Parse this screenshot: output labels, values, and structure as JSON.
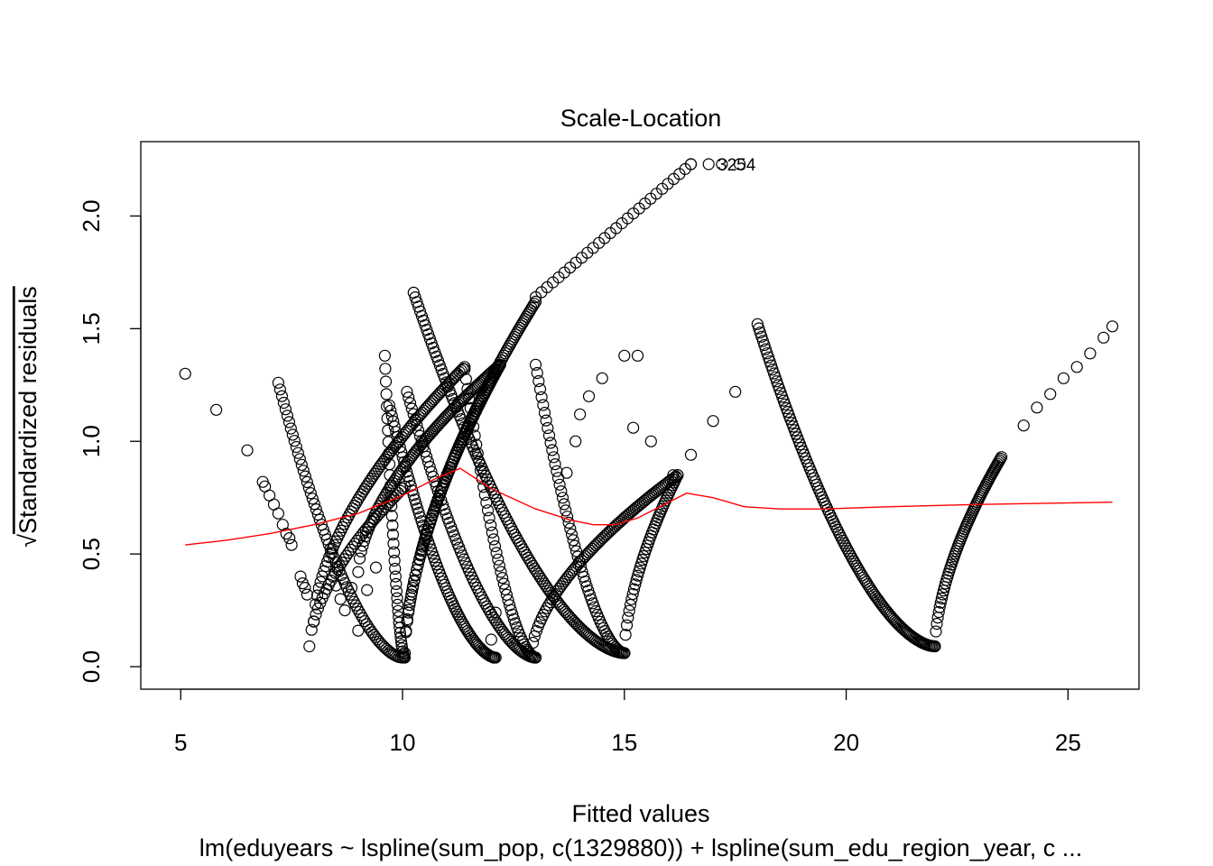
{
  "chart_data": {
    "type": "scatter",
    "title": "Scale-Location",
    "xlabel": "Fitted values",
    "ylabel": "Standardized residuals",
    "ylabel_prefix": "√",
    "subtitle": "lm(eduyears ~ lspline(sum_pop, c(1329880)) + lspline(sum_edu_region_year, c ...",
    "xlim": [
      4.1,
      26.6
    ],
    "ylim": [
      -0.1,
      2.33
    ],
    "xticks": [
      5,
      10,
      15,
      20,
      25
    ],
    "yticks": [
      0.0,
      0.5,
      1.0,
      1.5,
      2.0
    ],
    "grid": false,
    "colors": {
      "points": "#000000",
      "smooth": "#ff0000"
    },
    "point_labels": [
      {
        "text": "3254",
        "x": 17.1,
        "y": 2.23
      }
    ],
    "point_groups": [
      {
        "x": [
          5.1,
          5.8,
          6.5
        ],
        "y": [
          1.3,
          1.14,
          0.96
        ]
      },
      {
        "x": [
          6.85,
          6.9,
          7.0,
          7.1,
          7.2,
          7.3,
          7.38,
          7.45,
          7.5
        ],
        "y": [
          0.82,
          0.8,
          0.76,
          0.72,
          0.68,
          0.63,
          0.59,
          0.57,
          0.54
        ]
      },
      {
        "x": [
          7.7,
          7.75,
          7.8,
          7.85
        ],
        "y": [
          0.4,
          0.37,
          0.35,
          0.32
        ]
      },
      {
        "x": [
          8.5,
          8.6,
          8.7,
          8.85,
          9.0,
          9.2,
          9.4
        ],
        "y": [
          0.36,
          0.3,
          0.25,
          0.35,
          0.16,
          0.34,
          0.44
        ]
      },
      {
        "x": [
          12.05,
          12.0,
          12.1
        ],
        "y": [
          0.04,
          0.12,
          0.24
        ]
      },
      {
        "x": [
          14.0,
          14.2,
          14.5,
          15.0,
          15.3
        ],
        "y": [
          1.12,
          1.2,
          1.28,
          1.38,
          1.38
        ]
      },
      {
        "x": [
          15.2,
          15.6
        ],
        "y": [
          1.06,
          1.0
        ]
      },
      {
        "x": [
          13.7,
          13.9
        ],
        "y": [
          0.86,
          1.0
        ]
      },
      {
        "x": [
          16.1,
          16.5,
          17.0,
          17.5
        ],
        "y": [
          0.85,
          0.94,
          1.09,
          1.22
        ]
      },
      {
        "x": [
          16.5,
          16.9,
          17.2,
          17.6
        ],
        "y": [
          2.23,
          2.23,
          2.23,
          2.23
        ]
      },
      {
        "x": [
          24.0,
          24.3,
          24.6,
          24.9,
          25.2,
          25.5,
          25.8,
          26.0
        ],
        "y": [
          1.07,
          1.15,
          1.21,
          1.28,
          1.33,
          1.39,
          1.46,
          1.51
        ]
      }
    ],
    "point_curves": [
      {
        "x_from": 7.2,
        "x_to": 10.0,
        "y_from": 1.26,
        "y_to": 0.04,
        "n": 70,
        "shape": "down"
      },
      {
        "x_from": 7.9,
        "x_to": 10.05,
        "y_from": 0.09,
        "y_to": 0.8,
        "n": 45,
        "shape": "up"
      },
      {
        "x_from": 8.0,
        "x_to": 11.4,
        "y_from": 0.2,
        "y_to": 1.33,
        "n": 90,
        "shape": "up"
      },
      {
        "x_from": 9.6,
        "x_to": 10.05,
        "y_from": 1.38,
        "y_to": 0.04,
        "n": 40,
        "shape": "down"
      },
      {
        "x_from": 9.7,
        "x_to": 12.1,
        "y_from": 1.16,
        "y_to": 0.04,
        "n": 80,
        "shape": "down"
      },
      {
        "x_from": 9.0,
        "x_to": 12.2,
        "y_from": 0.42,
        "y_to": 1.34,
        "n": 95,
        "shape": "up"
      },
      {
        "x_from": 10.05,
        "x_to": 12.2,
        "y_from": 0.06,
        "y_to": 1.34,
        "n": 80,
        "shape": "up"
      },
      {
        "x_from": 10.05,
        "x_to": 13.0,
        "y_from": 0.06,
        "y_to": 1.62,
        "n": 100,
        "shape": "up"
      },
      {
        "x_from": 10.1,
        "x_to": 13.0,
        "y_from": 1.22,
        "y_to": 0.04,
        "n": 80,
        "shape": "down"
      },
      {
        "x_from": 10.25,
        "x_to": 15.0,
        "y_from": 1.66,
        "y_to": 0.06,
        "n": 130,
        "shape": "down"
      },
      {
        "x_from": 11.4,
        "x_to": 13.0,
        "y_from": 1.32,
        "y_to": 0.04,
        "n": 50,
        "shape": "down"
      },
      {
        "x_from": 13.0,
        "x_to": 15.0,
        "y_from": 1.34,
        "y_to": 0.06,
        "n": 60,
        "shape": "down"
      },
      {
        "x_from": 12.9,
        "x_to": 16.2,
        "y_from": 0.05,
        "y_to": 0.85,
        "n": 85,
        "shape": "up"
      },
      {
        "x_from": 15.0,
        "x_to": 16.2,
        "y_from": 0.06,
        "y_to": 0.85,
        "n": 45,
        "shape": "up"
      },
      {
        "x_from": 13.0,
        "x_to": 16.5,
        "y_from": 1.64,
        "y_to": 2.23,
        "n": 28,
        "shape": "linear"
      },
      {
        "x_from": 18.0,
        "x_to": 22.0,
        "y_from": 1.52,
        "y_to": 0.09,
        "n": 130,
        "shape": "down"
      },
      {
        "x_from": 22.0,
        "x_to": 23.5,
        "y_from": 0.09,
        "y_to": 0.93,
        "n": 70,
        "shape": "up"
      }
    ],
    "smooth_line": {
      "x": [
        5.1,
        6.0,
        7.0,
        8.0,
        9.0,
        10.0,
        10.8,
        11.3,
        12.0,
        13.0,
        13.8,
        14.3,
        14.8,
        15.3,
        15.8,
        16.4,
        17.0,
        17.7,
        18.5,
        19.5,
        21.0,
        23.0,
        26.0
      ],
      "y": [
        0.54,
        0.56,
        0.59,
        0.63,
        0.68,
        0.76,
        0.84,
        0.88,
        0.79,
        0.7,
        0.65,
        0.63,
        0.63,
        0.66,
        0.71,
        0.77,
        0.75,
        0.71,
        0.7,
        0.7,
        0.71,
        0.72,
        0.73
      ]
    }
  }
}
